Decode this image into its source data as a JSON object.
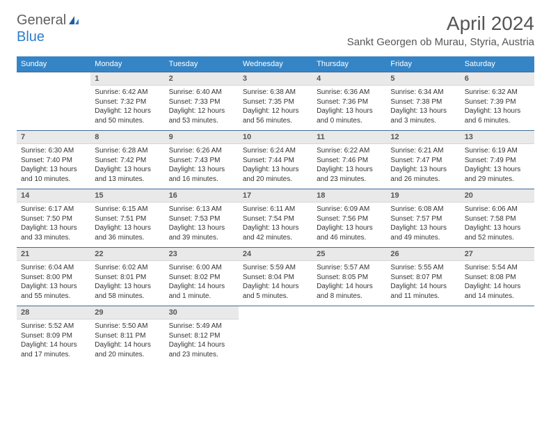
{
  "logo": {
    "text1": "General",
    "text2": "Blue"
  },
  "title": "April 2024",
  "location": "Sankt Georgen ob Murau, Styria, Austria",
  "colors": {
    "header_bg": "#3585c6",
    "header_text": "#ffffff",
    "daynum_bg": "#e9e9e9",
    "cell_border": "#3b6c95",
    "text": "#333333",
    "title_text": "#555555"
  },
  "weekdays": [
    "Sunday",
    "Monday",
    "Tuesday",
    "Wednesday",
    "Thursday",
    "Friday",
    "Saturday"
  ],
  "weeks": [
    [
      null,
      {
        "n": "1",
        "sr": "Sunrise: 6:42 AM",
        "ss": "Sunset: 7:32 PM",
        "dl": "Daylight: 12 hours and 50 minutes."
      },
      {
        "n": "2",
        "sr": "Sunrise: 6:40 AM",
        "ss": "Sunset: 7:33 PM",
        "dl": "Daylight: 12 hours and 53 minutes."
      },
      {
        "n": "3",
        "sr": "Sunrise: 6:38 AM",
        "ss": "Sunset: 7:35 PM",
        "dl": "Daylight: 12 hours and 56 minutes."
      },
      {
        "n": "4",
        "sr": "Sunrise: 6:36 AM",
        "ss": "Sunset: 7:36 PM",
        "dl": "Daylight: 13 hours and 0 minutes."
      },
      {
        "n": "5",
        "sr": "Sunrise: 6:34 AM",
        "ss": "Sunset: 7:38 PM",
        "dl": "Daylight: 13 hours and 3 minutes."
      },
      {
        "n": "6",
        "sr": "Sunrise: 6:32 AM",
        "ss": "Sunset: 7:39 PM",
        "dl": "Daylight: 13 hours and 6 minutes."
      }
    ],
    [
      {
        "n": "7",
        "sr": "Sunrise: 6:30 AM",
        "ss": "Sunset: 7:40 PM",
        "dl": "Daylight: 13 hours and 10 minutes."
      },
      {
        "n": "8",
        "sr": "Sunrise: 6:28 AM",
        "ss": "Sunset: 7:42 PM",
        "dl": "Daylight: 13 hours and 13 minutes."
      },
      {
        "n": "9",
        "sr": "Sunrise: 6:26 AM",
        "ss": "Sunset: 7:43 PM",
        "dl": "Daylight: 13 hours and 16 minutes."
      },
      {
        "n": "10",
        "sr": "Sunrise: 6:24 AM",
        "ss": "Sunset: 7:44 PM",
        "dl": "Daylight: 13 hours and 20 minutes."
      },
      {
        "n": "11",
        "sr": "Sunrise: 6:22 AM",
        "ss": "Sunset: 7:46 PM",
        "dl": "Daylight: 13 hours and 23 minutes."
      },
      {
        "n": "12",
        "sr": "Sunrise: 6:21 AM",
        "ss": "Sunset: 7:47 PM",
        "dl": "Daylight: 13 hours and 26 minutes."
      },
      {
        "n": "13",
        "sr": "Sunrise: 6:19 AM",
        "ss": "Sunset: 7:49 PM",
        "dl": "Daylight: 13 hours and 29 minutes."
      }
    ],
    [
      {
        "n": "14",
        "sr": "Sunrise: 6:17 AM",
        "ss": "Sunset: 7:50 PM",
        "dl": "Daylight: 13 hours and 33 minutes."
      },
      {
        "n": "15",
        "sr": "Sunrise: 6:15 AM",
        "ss": "Sunset: 7:51 PM",
        "dl": "Daylight: 13 hours and 36 minutes."
      },
      {
        "n": "16",
        "sr": "Sunrise: 6:13 AM",
        "ss": "Sunset: 7:53 PM",
        "dl": "Daylight: 13 hours and 39 minutes."
      },
      {
        "n": "17",
        "sr": "Sunrise: 6:11 AM",
        "ss": "Sunset: 7:54 PM",
        "dl": "Daylight: 13 hours and 42 minutes."
      },
      {
        "n": "18",
        "sr": "Sunrise: 6:09 AM",
        "ss": "Sunset: 7:56 PM",
        "dl": "Daylight: 13 hours and 46 minutes."
      },
      {
        "n": "19",
        "sr": "Sunrise: 6:08 AM",
        "ss": "Sunset: 7:57 PM",
        "dl": "Daylight: 13 hours and 49 minutes."
      },
      {
        "n": "20",
        "sr": "Sunrise: 6:06 AM",
        "ss": "Sunset: 7:58 PM",
        "dl": "Daylight: 13 hours and 52 minutes."
      }
    ],
    [
      {
        "n": "21",
        "sr": "Sunrise: 6:04 AM",
        "ss": "Sunset: 8:00 PM",
        "dl": "Daylight: 13 hours and 55 minutes."
      },
      {
        "n": "22",
        "sr": "Sunrise: 6:02 AM",
        "ss": "Sunset: 8:01 PM",
        "dl": "Daylight: 13 hours and 58 minutes."
      },
      {
        "n": "23",
        "sr": "Sunrise: 6:00 AM",
        "ss": "Sunset: 8:02 PM",
        "dl": "Daylight: 14 hours and 1 minute."
      },
      {
        "n": "24",
        "sr": "Sunrise: 5:59 AM",
        "ss": "Sunset: 8:04 PM",
        "dl": "Daylight: 14 hours and 5 minutes."
      },
      {
        "n": "25",
        "sr": "Sunrise: 5:57 AM",
        "ss": "Sunset: 8:05 PM",
        "dl": "Daylight: 14 hours and 8 minutes."
      },
      {
        "n": "26",
        "sr": "Sunrise: 5:55 AM",
        "ss": "Sunset: 8:07 PM",
        "dl": "Daylight: 14 hours and 11 minutes."
      },
      {
        "n": "27",
        "sr": "Sunrise: 5:54 AM",
        "ss": "Sunset: 8:08 PM",
        "dl": "Daylight: 14 hours and 14 minutes."
      }
    ],
    [
      {
        "n": "28",
        "sr": "Sunrise: 5:52 AM",
        "ss": "Sunset: 8:09 PM",
        "dl": "Daylight: 14 hours and 17 minutes."
      },
      {
        "n": "29",
        "sr": "Sunrise: 5:50 AM",
        "ss": "Sunset: 8:11 PM",
        "dl": "Daylight: 14 hours and 20 minutes."
      },
      {
        "n": "30",
        "sr": "Sunrise: 5:49 AM",
        "ss": "Sunset: 8:12 PM",
        "dl": "Daylight: 14 hours and 23 minutes."
      },
      null,
      null,
      null,
      null
    ]
  ]
}
